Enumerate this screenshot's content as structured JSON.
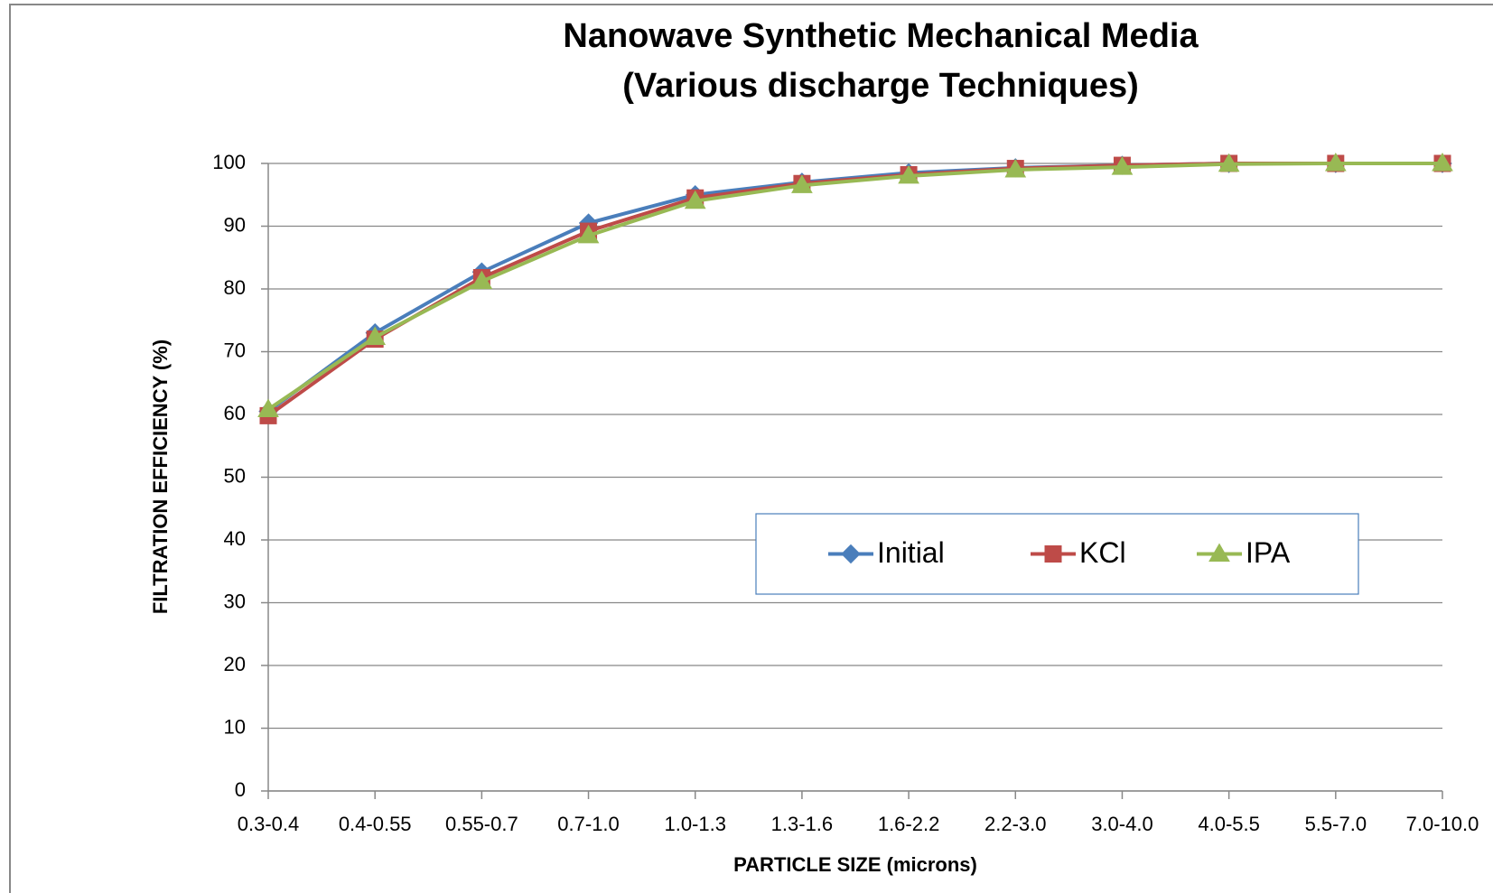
{
  "chart_data": {
    "type": "line",
    "title": "Nanowave  Synthetic Mechanical Media",
    "subtitle": "(Various discharge Techniques)",
    "x_label": "PARTICLE SIZE (microns)",
    "y_label": "FILTRATION EFFICIENCY (%)",
    "categories": [
      "0.3-0.4",
      "0.4-0.55",
      "0.55-0.7",
      "0.7-1.0",
      "1.0-1.3",
      "1.3-1.6",
      "1.6-2.2",
      "2.2-3.0",
      "3.0-4.0",
      "4.0-5.5",
      "5.5-7.0",
      "7.0-10.0"
    ],
    "series": [
      {
        "name": "Initial",
        "color": "#4a7ebb",
        "marker": "diamond",
        "values": [
          60.5,
          73,
          82.7,
          90.5,
          95,
          97,
          98.5,
          99.3,
          99.7,
          100,
          100,
          100
        ]
      },
      {
        "name": "KCl",
        "color": "#be4b48",
        "marker": "square",
        "values": [
          59.8,
          72,
          81.8,
          89.2,
          94.5,
          96.8,
          98.2,
          99.2,
          99.7,
          100,
          100,
          100
        ]
      },
      {
        "name": "IPA",
        "color": "#98b954",
        "marker": "triangle",
        "values": [
          60.8,
          72.3,
          81.2,
          88.5,
          94,
          96.5,
          98,
          99,
          99.4,
          99.9,
          100,
          100
        ]
      }
    ],
    "ylim": [
      0,
      100
    ],
    "yticks": [
      0,
      10,
      20,
      30,
      40,
      50,
      60,
      70,
      80,
      90,
      100
    ],
    "grid": true,
    "legend_position": "center-right"
  }
}
